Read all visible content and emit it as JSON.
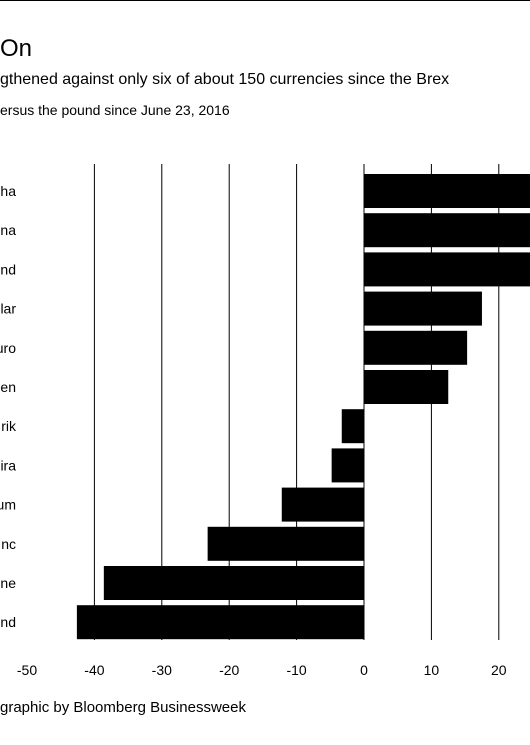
{
  "header": {
    "title": "On",
    "subtitle": "gthened against only six of about 150 currencies since the Brex",
    "unit_note": "ersus the pound since June 23, 2016"
  },
  "footer": {
    "source": "graphic by Bloomberg Businessweek"
  },
  "chart_data": {
    "type": "bar",
    "orientation": "horizontal",
    "title": "On",
    "subtitle": "gthened against only six of about 150 currencies since the Brex",
    "ylabel": "ersus the pound since June 23, 2016",
    "categories": [
      "ha",
      "na",
      "nd",
      "lar",
      "uro",
      "en",
      "rik",
      "ira",
      "um",
      "nc",
      "ne",
      "nd"
    ],
    "values": [
      25,
      25,
      25,
      17.5,
      15.3,
      12.5,
      -3.3,
      -4.8,
      -12.2,
      -23.2,
      -38.6,
      -42.6
    ],
    "xlim": [
      -50,
      25
    ],
    "xticks": [
      -50,
      -40,
      -30,
      -20,
      -10,
      0,
      10,
      20
    ],
    "xtick_labels": [
      "-50",
      "-40",
      "-30",
      "-20",
      "-10",
      "0",
      "10",
      "20"
    ],
    "grid": "vertical",
    "bar_color": "#000000"
  }
}
